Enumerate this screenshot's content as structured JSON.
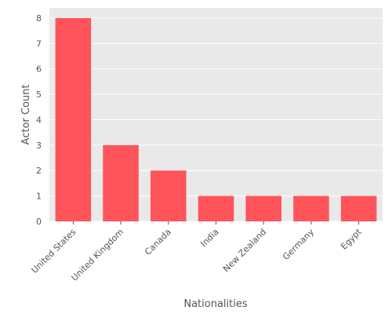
{
  "chart_data": {
    "type": "bar",
    "title": "",
    "xlabel": "Nationalities",
    "ylabel": "Actor Count",
    "categories": [
      "United States",
      "United Kingdom",
      "Canada",
      "India",
      "New Zealand",
      "Germany",
      "Egypt"
    ],
    "values": [
      8,
      3,
      2,
      1,
      1,
      1,
      1
    ],
    "ylim": [
      0,
      8.4
    ],
    "yticks": [
      0,
      1,
      2,
      3,
      4,
      5,
      6,
      7,
      8
    ],
    "grid": true,
    "legend": "none",
    "colors": {
      "bar": "#ff5459",
      "plot_background": "#e9e9e9",
      "grid": "#ffffff",
      "text": "#555555"
    }
  }
}
